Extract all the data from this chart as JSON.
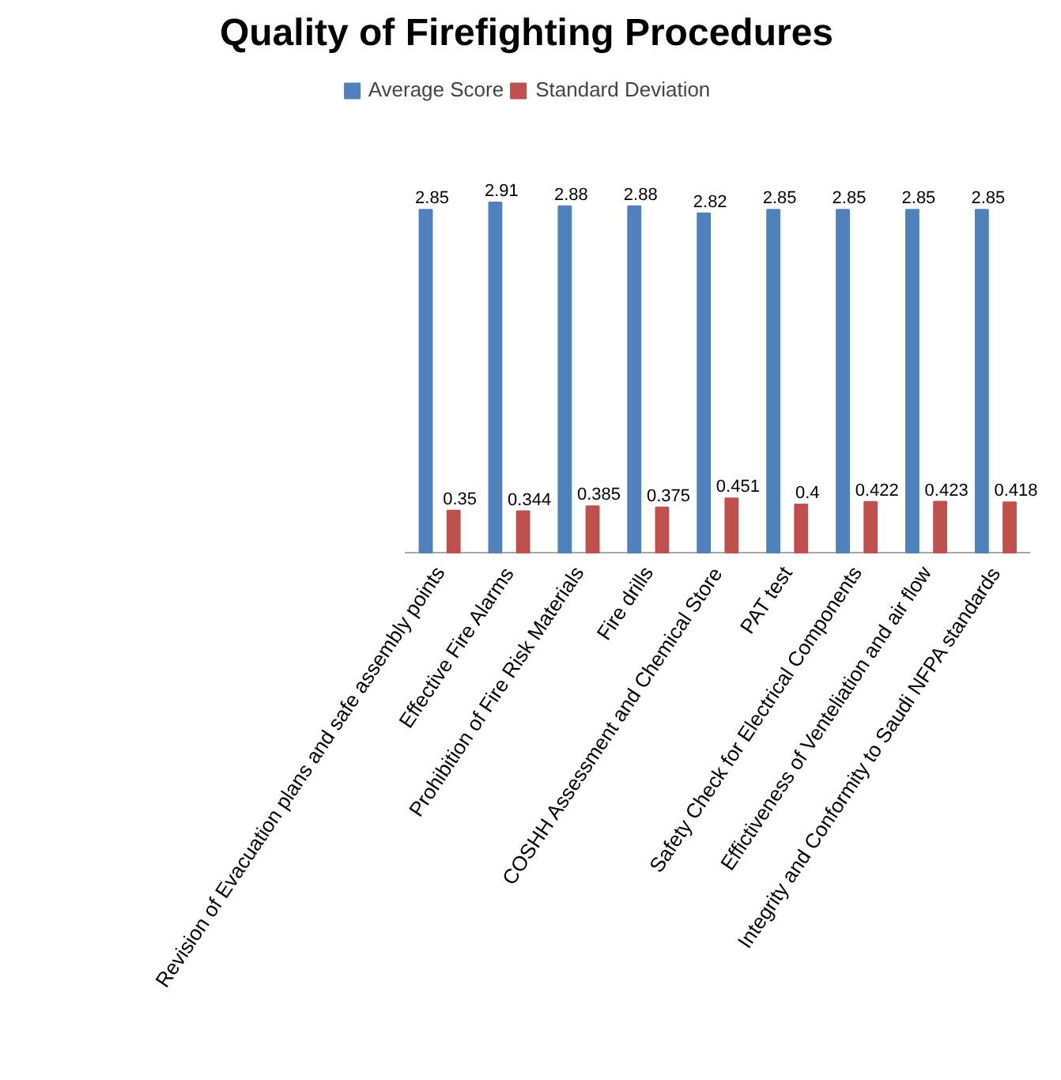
{
  "chart_data": {
    "type": "bar",
    "title": "Quality of Firefighting Procedures",
    "categories": [
      "Revision of Evacuation plans and safe assembly points",
      "Effective Fire Alarms",
      "Prohibition of Fire Risk Materials",
      "Fire drills",
      "COSHH Assessment and Chemical Store",
      "PAT test",
      "Safety Check for Electrical Components",
      "Effictiveness of Venteliation and air flow",
      "Integrity and Conformity to Saudi NFPA standards"
    ],
    "series": [
      {
        "name": "Average Score",
        "color": "#4f81bd",
        "values": [
          2.85,
          2.91,
          2.88,
          2.88,
          2.82,
          2.85,
          2.85,
          2.85,
          2.85
        ]
      },
      {
        "name": "Standard Deviation",
        "color": "#c0504d",
        "values": [
          0.35,
          0.344,
          0.385,
          0.375,
          0.451,
          0.4,
          0.422,
          0.423,
          0.418
        ]
      }
    ],
    "data_labels": true,
    "legend": "top",
    "grid": false,
    "tick_labels": "x"
  }
}
